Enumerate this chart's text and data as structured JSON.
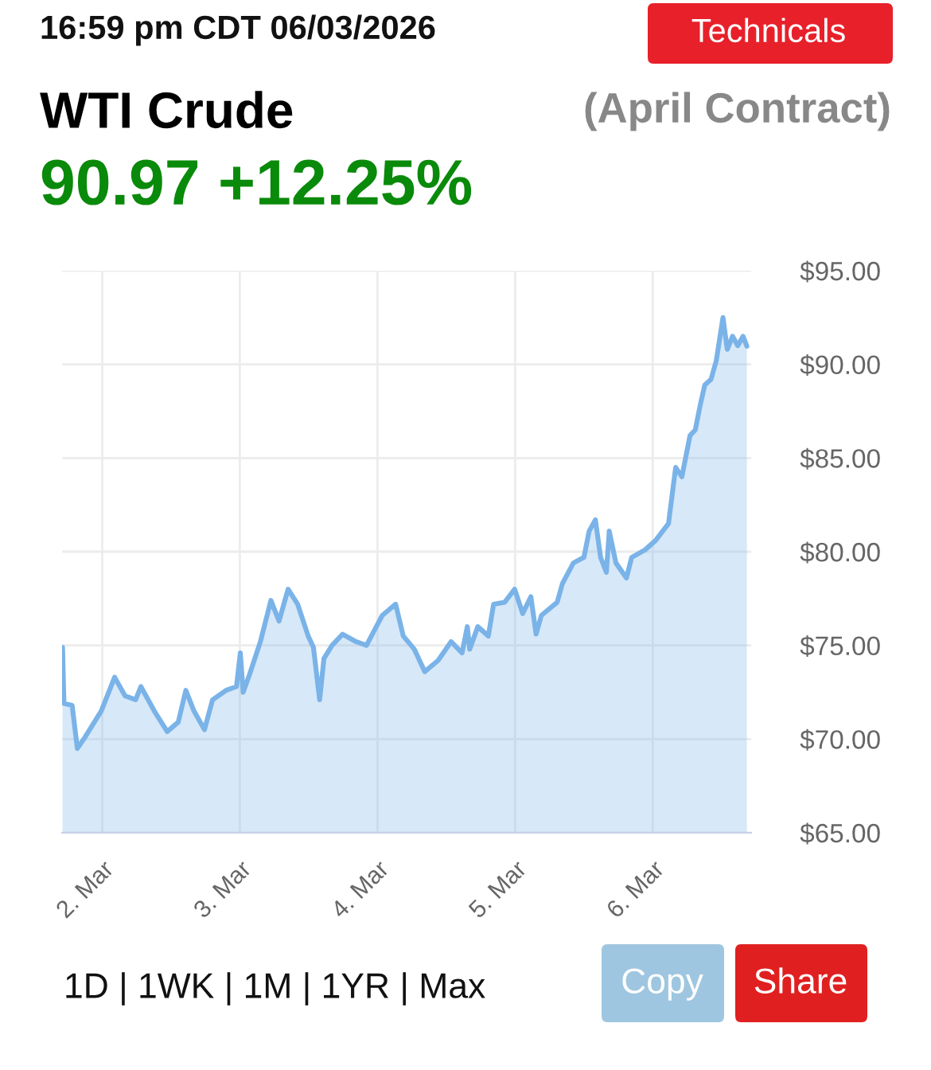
{
  "chart_data": {
    "type": "area",
    "title": "WTI Crude",
    "subtitle": "(April Contract)",
    "annotations": [
      "16:59 pm CDT 06/03/2026",
      "90.97 +12.25%",
      "Technicals",
      "1D | 1WK | 1M | 1YR | Max",
      "Copy",
      "Share"
    ],
    "x": [
      "2026-03-01T17:05",
      "2026-03-01T17:20",
      "2026-03-01T18:45",
      "2026-03-01T19:40",
      "2026-03-01T21:00",
      "2026-03-01T23:50",
      "2026-03-02T02:10",
      "2026-03-02T04:00",
      "2026-03-02T05:50",
      "2026-03-02T06:45",
      "2026-03-02T09:05",
      "2026-03-02T11:20",
      "2026-03-02T13:15",
      "2026-03-02T14:35",
      "2026-03-02T16:00",
      "2026-03-02T17:50",
      "2026-03-02T19:15",
      "2026-03-02T21:35",
      "2026-03-02T23:25",
      "2026-03-03T00:05",
      "2026-03-03T00:35",
      "2026-03-03T01:45",
      "2026-03-03T03:35",
      "2026-03-03T05:25",
      "2026-03-03T06:50",
      "2026-03-03T08:25",
      "2026-03-03T10:05",
      "2026-03-03T11:55",
      "2026-03-03T12:50",
      "2026-03-03T13:55",
      "2026-03-03T14:40",
      "2026-03-03T16:05",
      "2026-03-03T17:55",
      "2026-03-03T20:15",
      "2026-03-03T22:05",
      "2026-03-04T00:50",
      "2026-03-04T03:10",
      "2026-03-04T04:30",
      "2026-03-04T06:25",
      "2026-03-04T08:15",
      "2026-03-04T10:35",
      "2026-03-04T12:50",
      "2026-03-04T14:45",
      "2026-03-04T15:40",
      "2026-03-04T16:05",
      "2026-03-04T17:30",
      "2026-03-04T19:20",
      "2026-03-04T20:15",
      "2026-03-04T22:10",
      "2026-03-04T23:55",
      "2026-03-05T01:20",
      "2026-03-05T02:45",
      "2026-03-05T03:40",
      "2026-03-05T04:35",
      "2026-03-05T07:20",
      "2026-03-05T08:15",
      "2026-03-05T10:10",
      "2026-03-05T12:00",
      "2026-03-05T12:55",
      "2026-03-05T14:00",
      "2026-03-05T14:55",
      "2026-03-05T15:55",
      "2026-03-05T16:25",
      "2026-03-05T17:35",
      "2026-03-05T19:25",
      "2026-03-05T20:20",
      "2026-03-05T22:40",
      "2026-03-06T00:30",
      "2026-03-06T02:45",
      "2026-03-06T04:00",
      "2026-03-06T05:05",
      "2026-03-06T06:30",
      "2026-03-06T07:25",
      "2026-03-06T08:20",
      "2026-03-06T09:05",
      "2026-03-06T10:10",
      "2026-03-06T11:05",
      "2026-03-06T12:15",
      "2026-03-06T13:00",
      "2026-03-06T13:55",
      "2026-03-06T14:50",
      "2026-03-06T15:45",
      "2026-03-06T16:25"
    ],
    "series": [
      {
        "color": "#7ab3e8",
        "values": [
          74.9,
          71.9,
          71.8,
          69.5,
          70.1,
          71.5,
          73.3,
          72.3,
          72.1,
          72.8,
          71.5,
          70.4,
          70.9,
          72.6,
          71.5,
          70.5,
          72.1,
          72.6,
          72.8,
          74.6,
          72.5,
          73.5,
          75.2,
          77.4,
          76.3,
          78.0,
          77.2,
          75.5,
          74.9,
          72.1,
          74.3,
          75.0,
          75.6,
          75.2,
          75.0,
          76.6,
          77.2,
          75.5,
          74.8,
          73.6,
          74.2,
          75.2,
          74.6,
          76.0,
          74.8,
          76.0,
          75.5,
          77.2,
          77.3,
          78.0,
          76.7,
          77.6,
          75.6,
          76.6,
          77.3,
          78.3,
          79.4,
          79.7,
          81.1,
          81.7,
          79.7,
          78.9,
          81.1,
          79.4,
          78.6,
          79.7,
          80.1,
          80.6,
          81.5,
          84.5,
          84.0,
          86.2,
          86.5,
          87.9,
          88.9,
          89.2,
          90.2,
          92.5,
          90.8,
          91.5,
          91.0,
          91.5,
          90.97
        ]
      }
    ],
    "xlim": [
      "2026-03-01T17:00",
      "2026-03-06T17:10"
    ],
    "xticks": [
      {
        "value": "2026-03-02",
        "label": "2. Mar"
      },
      {
        "value": "2026-03-03",
        "label": "3. Mar"
      },
      {
        "value": "2026-03-04",
        "label": "4. Mar"
      },
      {
        "value": "2026-03-05",
        "label": "5. Mar"
      },
      {
        "value": "2026-03-06",
        "label": "6. Mar"
      }
    ],
    "ylim": [
      65,
      95
    ],
    "yticks": [
      {
        "value": 65,
        "label": "$65.00"
      },
      {
        "value": 70,
        "label": "$70.00"
      },
      {
        "value": 75,
        "label": "$75.00"
      },
      {
        "value": 80,
        "label": "$80.00"
      },
      {
        "value": 85,
        "label": "$85.00"
      },
      {
        "value": 90,
        "label": "$90.00"
      },
      {
        "value": 95,
        "label": "$95.00"
      }
    ],
    "grid": true,
    "legend": false
  }
}
